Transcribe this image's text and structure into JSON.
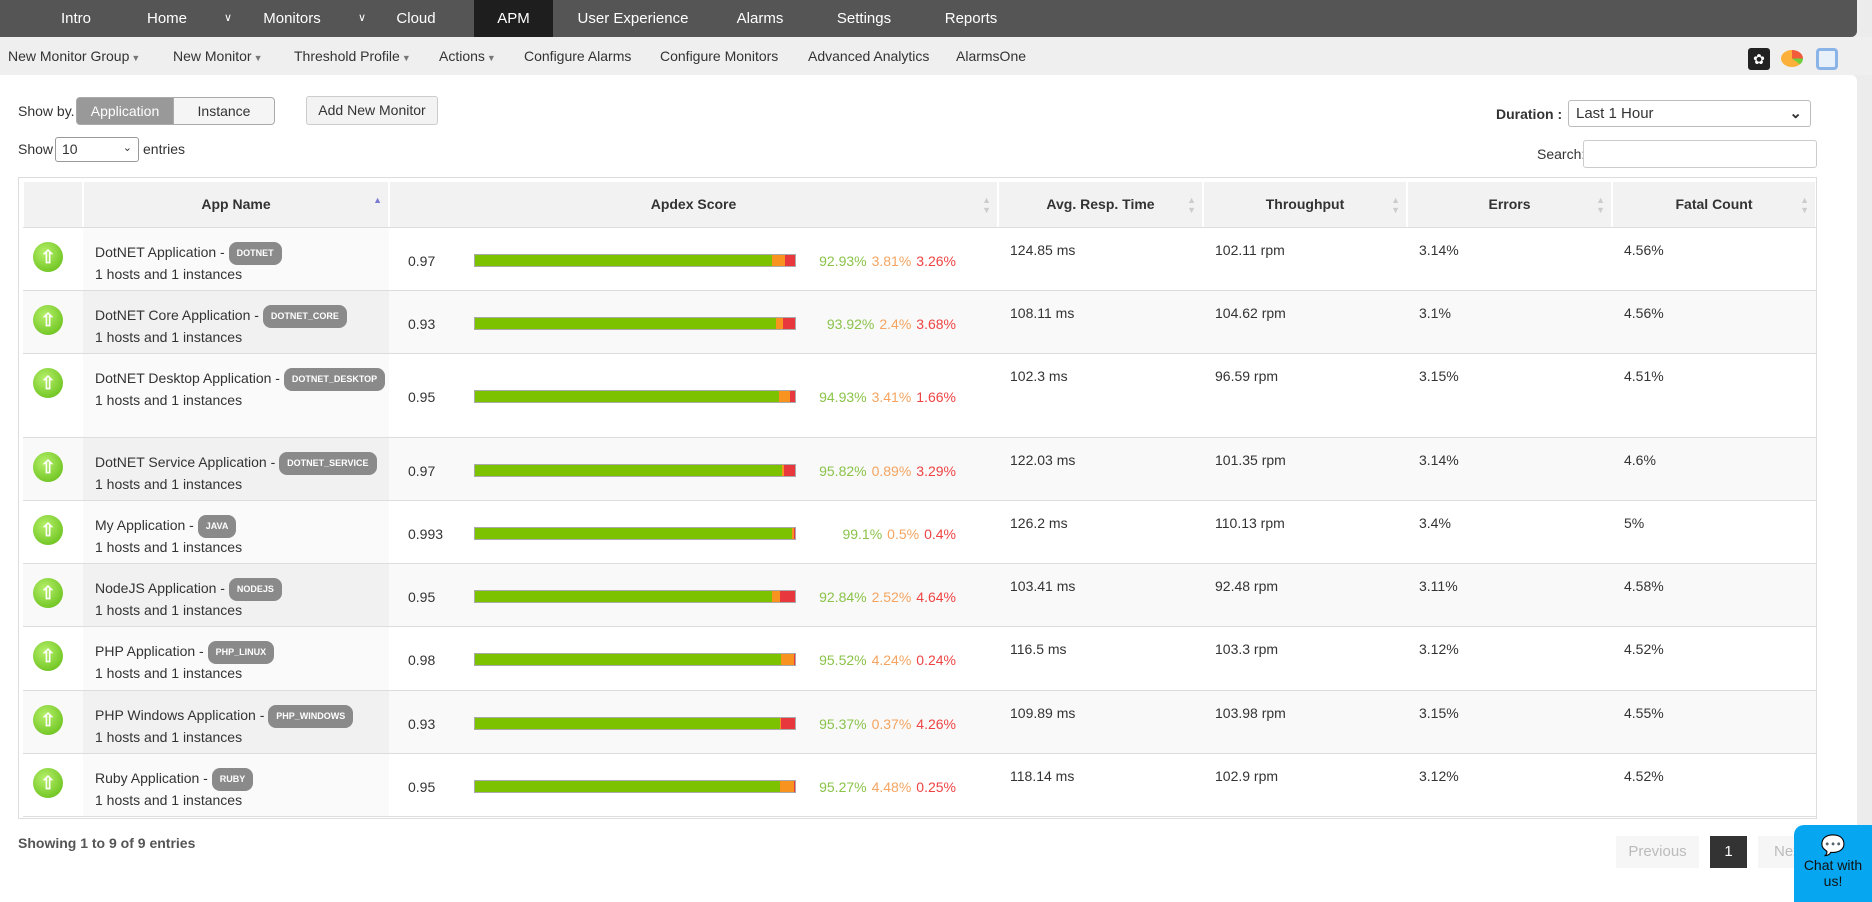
{
  "topnav": {
    "items": [
      "Intro",
      "Home",
      "Monitors",
      "Cloud",
      "APM",
      "User Experience",
      "Alarms",
      "Settings",
      "Reports"
    ],
    "active": "APM"
  },
  "subnav": {
    "items": [
      "New Monitor Group",
      "New Monitor",
      "Threshold Profile",
      "Actions",
      "Configure Alarms",
      "Configure Monitors",
      "Advanced Analytics",
      "AlarmsOne"
    ]
  },
  "toolbar_icons": [
    "shutter-icon",
    "pie-chart-icon",
    "printer-icon"
  ],
  "controls": {
    "show_by_label": "Show by.",
    "show_by_options": [
      "Application",
      "Instance"
    ],
    "show_by_selected": "Application",
    "add_new_monitor": "Add New Monitor",
    "duration_label": "Duration :",
    "duration_value": "Last 1 Hour",
    "show_label": "Show",
    "entries_value": "10",
    "entries_label": "entries",
    "search_label": "Search:",
    "search_value": ""
  },
  "table": {
    "headers": [
      "",
      "App Name",
      "Apdex Score",
      "Avg. Resp. Time",
      "Throughput",
      "Errors",
      "Fatal Count"
    ],
    "sorted_column": "App Name",
    "colors": {
      "satisfied": "#7cc200",
      "tolerating": "#f7931e",
      "frustrated": "#e8383d",
      "satisfied_text": "#8bc34a",
      "tolerating_text": "#f4a460",
      "frustrated_text": "#ee4444"
    },
    "rows": [
      {
        "name": "DotNET Application - ",
        "badge": "DOTNET",
        "hosts": "1 hosts and 1 instances",
        "apdex": "0.97",
        "satisfied": "92.93%",
        "tolerating": "3.81%",
        "frustrated": "3.26%",
        "resp": "124.85 ms",
        "throughput": "102.11 rpm",
        "errors": "3.14%",
        "fatal": "4.56%",
        "status": "up"
      },
      {
        "name": "DotNET Core Application - ",
        "badge": "DOTNET_CORE",
        "hosts": "1 hosts and 1 instances",
        "apdex": "0.93",
        "satisfied": "93.92%",
        "tolerating": "2.4%",
        "frustrated": "3.68%",
        "resp": "108.11 ms",
        "throughput": "104.62 rpm",
        "errors": "3.1%",
        "fatal": "4.56%",
        "status": "up"
      },
      {
        "name": "DotNET Desktop Application - ",
        "badge": "DOTNET_DESKTOP",
        "hosts": "1 hosts and 1 instances",
        "apdex": "0.95",
        "satisfied": "94.93%",
        "tolerating": "3.41%",
        "frustrated": "1.66%",
        "resp": "102.3 ms",
        "throughput": "96.59 rpm",
        "errors": "3.15%",
        "fatal": "4.51%",
        "status": "up"
      },
      {
        "name": "DotNET Service Application - ",
        "badge": "DOTNET_SERVICE",
        "hosts": "1 hosts and 1 instances",
        "apdex": "0.97",
        "satisfied": "95.82%",
        "tolerating": "0.89%",
        "frustrated": "3.29%",
        "resp": "122.03 ms",
        "throughput": "101.35 rpm",
        "errors": "3.14%",
        "fatal": "4.6%",
        "status": "up"
      },
      {
        "name": "My Application - ",
        "badge": "JAVA",
        "hosts": "1 hosts and 1 instances",
        "apdex": "0.993",
        "satisfied": "99.1%",
        "tolerating": "0.5%",
        "frustrated": "0.4%",
        "resp": "126.2 ms",
        "throughput": "110.13 rpm",
        "errors": "3.4%",
        "fatal": "5%",
        "status": "up"
      },
      {
        "name": "NodeJS Application - ",
        "badge": "NODEJS",
        "hosts": "1 hosts and 1 instances",
        "apdex": "0.95",
        "satisfied": "92.84%",
        "tolerating": "2.52%",
        "frustrated": "4.64%",
        "resp": "103.41 ms",
        "throughput": "92.48 rpm",
        "errors": "3.11%",
        "fatal": "4.58%",
        "status": "up"
      },
      {
        "name": "PHP Application - ",
        "badge": "PHP_LINUX",
        "hosts": "1 hosts and 1 instances",
        "apdex": "0.98",
        "satisfied": "95.52%",
        "tolerating": "4.24%",
        "frustrated": "0.24%",
        "resp": "116.5 ms",
        "throughput": "103.3 rpm",
        "errors": "3.12%",
        "fatal": "4.52%",
        "status": "up"
      },
      {
        "name": "PHP Windows Application - ",
        "badge": "PHP_WINDOWS",
        "hosts": "1 hosts and 1 instances",
        "apdex": "0.93",
        "satisfied": "95.37%",
        "tolerating": "0.37%",
        "frustrated": "4.26%",
        "resp": "109.89 ms",
        "throughput": "103.98 rpm",
        "errors": "3.15%",
        "fatal": "4.55%",
        "status": "up"
      },
      {
        "name": "Ruby Application - ",
        "badge": "RUBY",
        "hosts": "1 hosts and 1 instances",
        "apdex": "0.95",
        "satisfied": "95.27%",
        "tolerating": "4.48%",
        "frustrated": "0.25%",
        "resp": "118.14 ms",
        "throughput": "102.9 rpm",
        "errors": "3.12%",
        "fatal": "4.52%",
        "status": "up"
      }
    ]
  },
  "footer": {
    "info": "Showing 1 to 9 of 9 entries",
    "previous": "Previous",
    "page": "1",
    "next": "Next"
  },
  "chat": {
    "label": "Chat with us!"
  }
}
